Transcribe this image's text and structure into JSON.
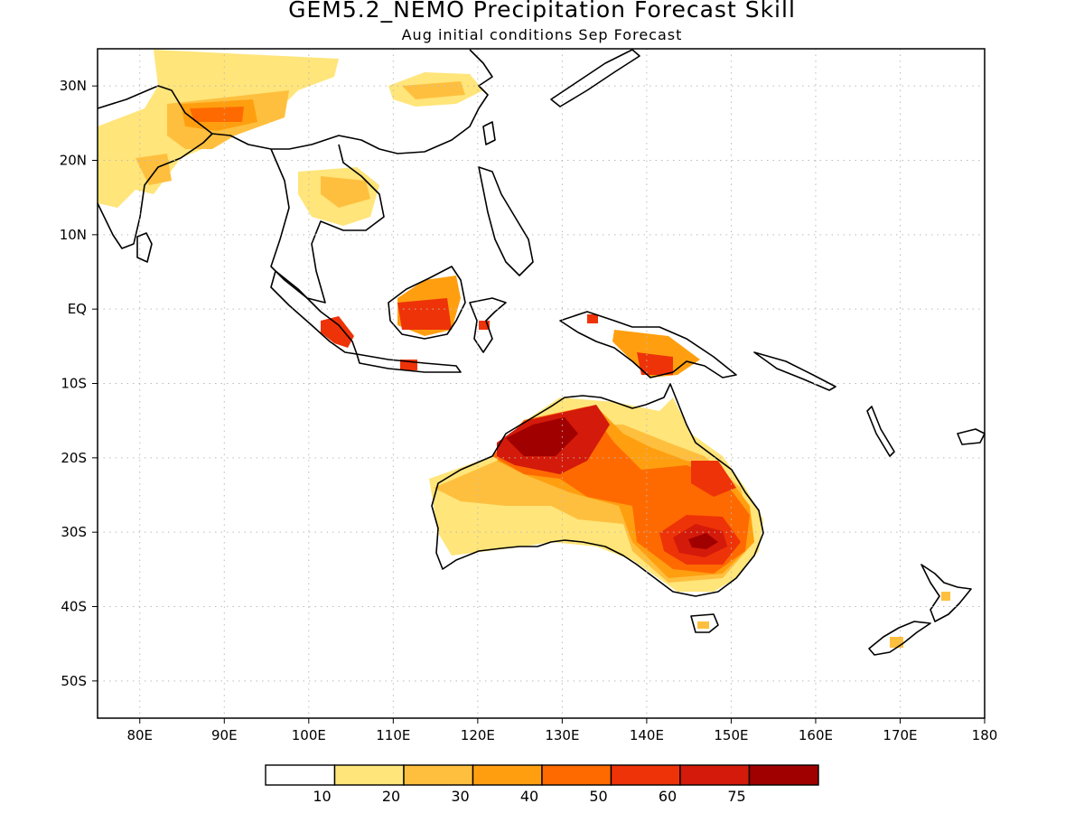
{
  "map": {
    "title": "GEM5.2_NEMO Precipitation Forecast Skill",
    "subtitle": "Aug initial conditions  Sep Forecast",
    "lon_range": [
      75,
      180
    ],
    "lat_range": [
      -55,
      35
    ],
    "lon_ticks": [
      {
        "value": 80,
        "label": "80E"
      },
      {
        "value": 90,
        "label": "90E"
      },
      {
        "value": 100,
        "label": "100E"
      },
      {
        "value": 110,
        "label": "110E"
      },
      {
        "value": 120,
        "label": "120E"
      },
      {
        "value": 130,
        "label": "130E"
      },
      {
        "value": 140,
        "label": "140E"
      },
      {
        "value": 150,
        "label": "150E"
      },
      {
        "value": 160,
        "label": "160E"
      },
      {
        "value": 170,
        "label": "170E"
      },
      {
        "value": 180,
        "label": "180"
      }
    ],
    "lat_ticks": [
      {
        "value": 30,
        "label": "30N"
      },
      {
        "value": 20,
        "label": "20N"
      },
      {
        "value": 10,
        "label": "10N"
      },
      {
        "value": 0,
        "label": "EQ"
      },
      {
        "value": -10,
        "label": "10S"
      },
      {
        "value": -20,
        "label": "20S"
      },
      {
        "value": -30,
        "label": "30S"
      },
      {
        "value": -40,
        "label": "40S"
      },
      {
        "value": -50,
        "label": "50S"
      }
    ],
    "grid": true
  },
  "colorbar": {
    "colors": [
      "#ffffff",
      "#ffe57a",
      "#ffbf3e",
      "#ff9f10",
      "#ff6a00",
      "#ee3308",
      "#d41a0a",
      "#a00000"
    ],
    "labels": [
      "10",
      "20",
      "30",
      "40",
      "50",
      "60",
      "75"
    ]
  },
  "colors": {
    "coast": "#000000",
    "grid": "#bbbbbb"
  }
}
